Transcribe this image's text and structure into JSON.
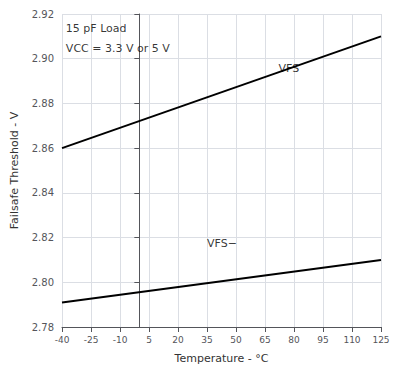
{
  "chart_data": {
    "type": "line",
    "xlabel": "Temperature - °C",
    "ylabel": "Failsafe Threshold - V",
    "xlim": [
      -40,
      125
    ],
    "ylim": [
      2.78,
      2.92
    ],
    "xticks": [
      -40,
      -25,
      -10,
      5,
      20,
      35,
      50,
      65,
      80,
      95,
      110,
      125
    ],
    "yticks": [
      2.78,
      {
        "value": 2.8,
        "label": "2.80"
      },
      2.82,
      2.84,
      2.86,
      2.88,
      {
        "value": 2.9,
        "label": "2.90"
      },
      2.92
    ],
    "grid": true,
    "series": [
      {
        "color": "#000000",
        "x": [
          -40,
          125
        ],
        "values": [
          2.86,
          2.91
        ]
      },
      {
        "color": "#000000",
        "x": [
          -40,
          125
        ],
        "values": [
          2.791,
          2.81
        ]
      }
    ],
    "annotations": [
      {
        "text": "VFS",
        "x": 72,
        "y": 2.893,
        "anchor": "bottom",
        "color": "#000000"
      },
      {
        "text": "VFS−",
        "x": 35,
        "y": 2.815,
        "anchor": "bottom",
        "color": "#000000"
      },
      {
        "text": "15 pF Load",
        "x": -38,
        "y": 2.916,
        "anchor": "top",
        "color": "#000000"
      },
      {
        "text": "VCC = 3.3 V or 5 V",
        "x": -38,
        "y": 2.907,
        "anchor": "top",
        "color": "#000000"
      }
    ]
  }
}
